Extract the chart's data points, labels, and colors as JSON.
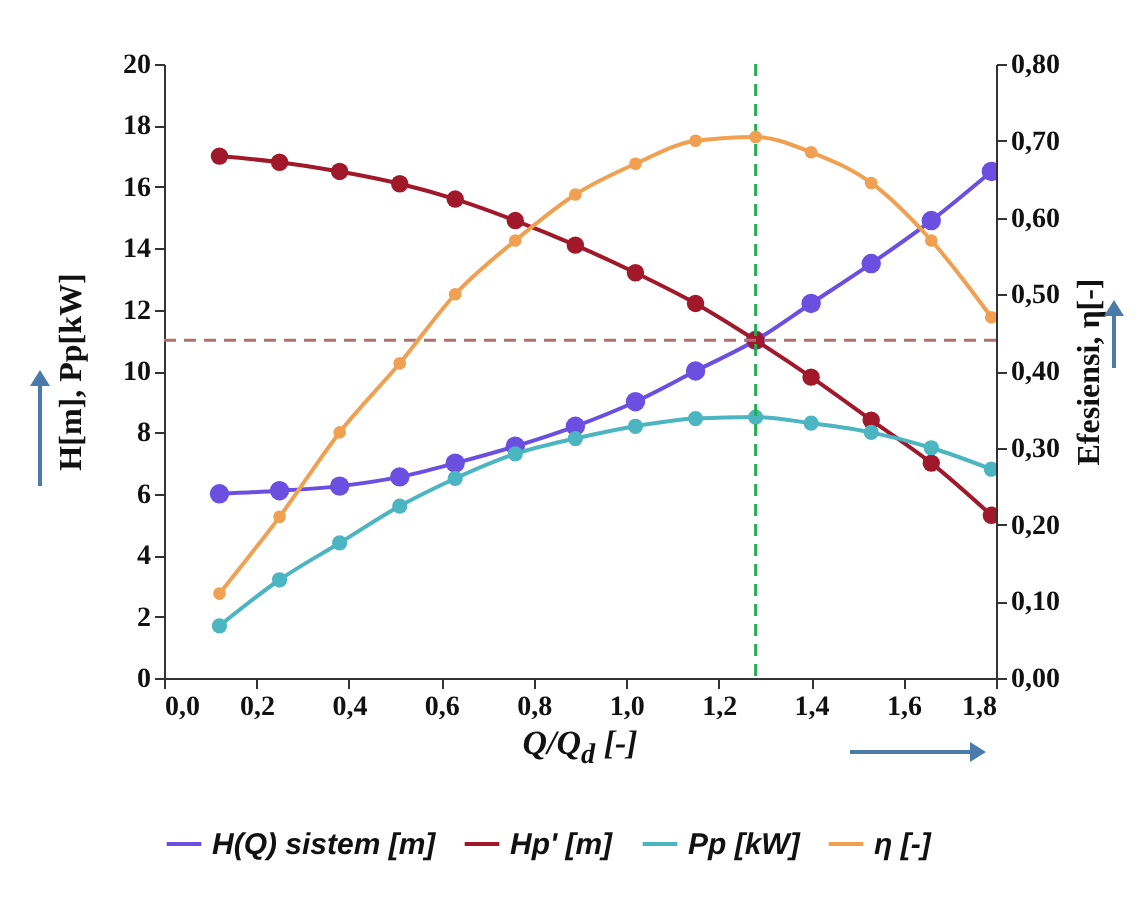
{
  "chart_data": {
    "type": "line",
    "xlabel": "Q/Q$_{d}$ [-]",
    "ylabel": "H[m], Pp[kW]",
    "y2label": "Efesiensi, η[-]",
    "x": [
      0.12,
      0.25,
      0.38,
      0.51,
      0.63,
      0.76,
      0.89,
      1.02,
      1.15,
      1.28,
      1.4,
      1.53,
      1.66,
      1.79
    ],
    "series": [
      {
        "name": "H(Q) sistem [m]",
        "color": "#6a4fe0",
        "values": [
          6.0,
          6.1,
          6.25,
          6.55,
          7.0,
          7.55,
          8.2,
          9.0,
          10.0,
          11.0,
          12.2,
          13.5,
          14.9,
          16.5
        ]
      },
      {
        "name": "Hp' [m]",
        "color": "#a0182a",
        "values": [
          17.0,
          16.8,
          16.5,
          16.1,
          15.6,
          14.9,
          14.1,
          13.2,
          12.2,
          11.0,
          9.8,
          8.4,
          7.0,
          5.3
        ]
      },
      {
        "name": "Pp [kW]",
        "color": "#4bb5c1",
        "values": [
          1.7,
          3.2,
          4.4,
          5.6,
          6.5,
          7.3,
          7.8,
          8.2,
          8.45,
          8.5,
          8.3,
          8.0,
          7.5,
          6.8
        ]
      },
      {
        "name": "η [-]",
        "color": "#f0a050",
        "axis": "y2",
        "values": [
          0.11,
          0.21,
          0.32,
          0.41,
          0.5,
          0.57,
          0.63,
          0.67,
          0.7,
          0.705,
          0.685,
          0.645,
          0.57,
          0.47
        ]
      }
    ],
    "xlim": [
      0,
      1.8
    ],
    "xticks": [
      {
        "value": 0,
        "label": "0,0"
      },
      {
        "value": 0.2,
        "label": "0,2"
      },
      {
        "value": 0.4,
        "label": "0,4"
      },
      {
        "value": 0.6,
        "label": "0,6"
      },
      {
        "value": 0.8,
        "label": "0,8"
      },
      {
        "value": 1.0,
        "label": "1,0"
      },
      {
        "value": 1.2,
        "label": "1,2"
      },
      {
        "value": 1.4,
        "label": "1,4"
      },
      {
        "value": 1.6,
        "label": "1,6"
      },
      {
        "value": 1.8,
        "label": "1,8"
      }
    ],
    "ylim": [
      0,
      20
    ],
    "yticks": [
      0,
      2,
      4,
      6,
      8,
      10,
      12,
      14,
      16,
      18,
      20
    ],
    "y2lim": [
      0,
      0.8
    ],
    "y2ticks": [
      {
        "value": 0,
        "label": "0,00"
      },
      {
        "value": 0.1,
        "label": "0,10"
      },
      {
        "value": 0.2,
        "label": "0,20"
      },
      {
        "value": 0.3,
        "label": "0,30"
      },
      {
        "value": 0.4,
        "label": "0,40"
      },
      {
        "value": 0.5,
        "label": "0,50"
      },
      {
        "value": 0.6,
        "label": "0,60"
      },
      {
        "value": 0.7,
        "label": "0,70"
      },
      {
        "value": 0.8,
        "label": "0,80"
      }
    ],
    "ref_lines": [
      {
        "axis": "y",
        "value": 11.0,
        "color": "#b07070",
        "line_style": "dashed"
      },
      {
        "axis": "x",
        "value": 1.28,
        "color": "#22b04c",
        "line_style": "dashed"
      }
    ],
    "legend": "bottom",
    "marker": "circle"
  }
}
